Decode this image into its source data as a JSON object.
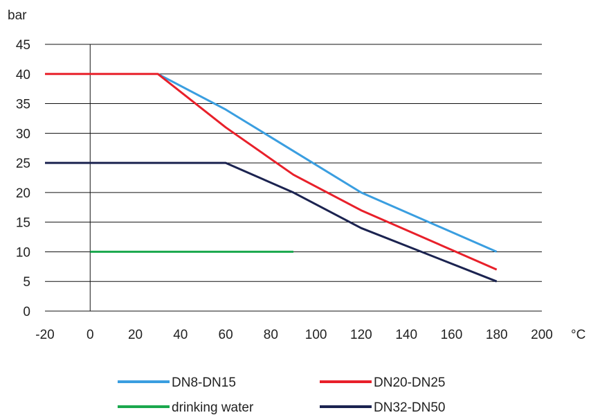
{
  "chart_data": {
    "type": "line",
    "xlabel": "°C",
    "ylabel": "bar",
    "xlim": [
      -20,
      200
    ],
    "ylim": [
      0,
      45
    ],
    "x_ticks": [
      "-20",
      "0",
      "20",
      "40",
      "60",
      "80",
      "100",
      "120",
      "140",
      "160",
      "180",
      "200"
    ],
    "y_ticks": [
      "0",
      "5",
      "10",
      "15",
      "20",
      "25",
      "30",
      "35",
      "40",
      "45"
    ],
    "grid": "horizontal",
    "legend_position": "bottom",
    "series": [
      {
        "name": "DN8-DN15",
        "color": "#3a9ee0",
        "points": [
          [
            30,
            40
          ],
          [
            60,
            34
          ],
          [
            120,
            20
          ],
          [
            180,
            10
          ]
        ]
      },
      {
        "name": "DN20-DN25",
        "color": "#e8202a",
        "points": [
          [
            -20,
            40
          ],
          [
            30,
            40
          ],
          [
            60,
            31
          ],
          [
            90,
            23
          ],
          [
            120,
            17
          ],
          [
            180,
            7
          ]
        ]
      },
      {
        "name": "drinking water",
        "color": "#1aa84d",
        "points": [
          [
            0,
            10
          ],
          [
            90,
            10
          ]
        ]
      },
      {
        "name": "DN32-DN50",
        "color": "#1b2350",
        "points": [
          [
            -20,
            25
          ],
          [
            60,
            25
          ],
          [
            90,
            20
          ],
          [
            120,
            14
          ],
          [
            180,
            5
          ]
        ]
      }
    ],
    "legend_order": [
      "DN8-DN15",
      "DN20-DN25",
      "drinking water",
      "DN32-DN50"
    ]
  }
}
